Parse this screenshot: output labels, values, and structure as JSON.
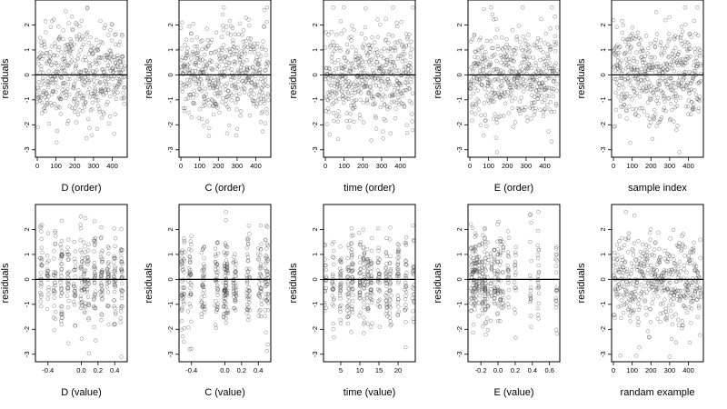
{
  "figure": {
    "colors": {
      "frame": "#000000",
      "points": "#3a3a3a",
      "background": "#ffffff"
    }
  },
  "chart_data": [
    {
      "type": "scatter",
      "xlabel": "D (order)",
      "ylabel": "residuals",
      "xlim": [
        -10,
        480
      ],
      "ylim": [
        -3.3,
        3.0
      ],
      "xticks": [
        0,
        100,
        200,
        300,
        400
      ],
      "yticks": [
        -3,
        -2,
        -1,
        0,
        1,
        2
      ],
      "reference_line_y": 0,
      "x_kind": "order",
      "n": 468,
      "seed": 11
    },
    {
      "type": "scatter",
      "xlabel": "C (order)",
      "ylabel": "residuals",
      "xlim": [
        -10,
        480
      ],
      "ylim": [
        -3.3,
        3.0
      ],
      "xticks": [
        0,
        100,
        200,
        300,
        400
      ],
      "yticks": [
        -3,
        -2,
        -1,
        0,
        1,
        2
      ],
      "reference_line_y": 0,
      "x_kind": "order",
      "n": 468,
      "seed": 23
    },
    {
      "type": "scatter",
      "xlabel": "time (order)",
      "ylabel": "residuals",
      "xlim": [
        -10,
        480
      ],
      "ylim": [
        -3.3,
        3.0
      ],
      "xticks": [
        0,
        100,
        200,
        300,
        400
      ],
      "yticks": [
        -3,
        -2,
        -1,
        0,
        1,
        2
      ],
      "reference_line_y": 0,
      "x_kind": "order",
      "n": 468,
      "seed": 37
    },
    {
      "type": "scatter",
      "xlabel": "E (order)",
      "ylabel": "residuals",
      "xlim": [
        -10,
        480
      ],
      "ylim": [
        -3.3,
        3.0
      ],
      "xticks": [
        0,
        100,
        200,
        300,
        400
      ],
      "yticks": [
        -3,
        -2,
        -1,
        0,
        1,
        2
      ],
      "reference_line_y": 0,
      "x_kind": "order",
      "n": 468,
      "seed": 41
    },
    {
      "type": "scatter",
      "xlabel": "sample index",
      "ylabel": "residuals",
      "xlim": [
        -10,
        480
      ],
      "ylim": [
        -3.3,
        3.0
      ],
      "xticks": [
        0,
        100,
        200,
        300,
        400
      ],
      "yticks": [
        -3,
        -2,
        -1,
        0,
        1,
        2
      ],
      "reference_line_y": 0,
      "x_kind": "order",
      "n": 468,
      "seed": 53
    },
    {
      "type": "scatter",
      "xlabel": "D (value)",
      "ylabel": "residuals",
      "xlim": [
        -0.55,
        0.55
      ],
      "ylim": [
        -3.3,
        3.0
      ],
      "xticks": [
        -0.4,
        0.0,
        0.2,
        0.4
      ],
      "xtick_labels": [
        "-0.4",
        "0.0",
        "0.2",
        "0.4"
      ],
      "yticks": [
        -3,
        -2,
        -1,
        0,
        1,
        2
      ],
      "reference_line_y": 0,
      "x_kind": "cols",
      "x_positions": [
        -0.48,
        -0.4,
        -0.32,
        -0.24,
        -0.16,
        -0.08,
        0.0,
        0.04,
        0.08,
        0.16,
        0.24,
        0.32,
        0.4,
        0.48
      ],
      "n": 400,
      "jitter": 0.012,
      "seed": 61
    },
    {
      "type": "scatter",
      "xlabel": "C (value)",
      "ylabel": "residuals",
      "xlim": [
        -0.55,
        0.55
      ],
      "ylim": [
        -3.3,
        3.0
      ],
      "xticks": [
        -0.4,
        0.0,
        0.2,
        0.4
      ],
      "xtick_labels": [
        "-0.4",
        "0.0",
        "0.2",
        "0.4"
      ],
      "yticks": [
        -3,
        -2,
        -1,
        0,
        1,
        2
      ],
      "reference_line_y": 0,
      "x_kind": "cols",
      "x_positions": [
        -0.5,
        -0.42,
        -0.26,
        -0.1,
        0.0,
        0.02,
        0.12,
        0.28,
        0.42,
        0.5
      ],
      "n": 400,
      "jitter": 0.02,
      "seed": 71
    },
    {
      "type": "scatter",
      "xlabel": "time (value)",
      "ylabel": "residuals",
      "xlim": [
        0.5,
        24.5
      ],
      "ylim": [
        -3.3,
        3.0
      ],
      "xticks": [
        5,
        10,
        15,
        20
      ],
      "yticks": [
        -3,
        -2,
        -1,
        0,
        1,
        2
      ],
      "reference_line_y": 0,
      "x_kind": "cols",
      "x_positions": [
        1,
        3,
        5,
        7,
        8,
        10,
        11,
        12,
        13,
        15,
        17,
        18,
        20,
        22,
        24
      ],
      "n": 420,
      "jitter": 0.25,
      "seed": 83
    },
    {
      "type": "scatter",
      "xlabel": "E (value)",
      "ylabel": "residuals",
      "xlim": [
        -0.35,
        0.72
      ],
      "ylim": [
        -3.3,
        3.0
      ],
      "xticks": [
        -0.2,
        0.0,
        0.2,
        0.4,
        0.6
      ],
      "xtick_labels": [
        "-0.2",
        "0.0",
        "0.2",
        "0.4",
        "0.6"
      ],
      "yticks": [
        -3,
        -2,
        -1,
        0,
        1,
        2
      ],
      "reference_line_y": 0,
      "x_kind": "cols",
      "x_positions": [
        -0.31,
        -0.29,
        -0.27,
        -0.25,
        -0.22,
        -0.18,
        -0.15,
        -0.12,
        -0.08,
        -0.04,
        0.0,
        0.03,
        0.06,
        0.12,
        0.2,
        0.38,
        0.47,
        0.68
      ],
      "n": 380,
      "jitter": 0.008,
      "seed": 97
    },
    {
      "type": "scatter",
      "xlabel": "randam example",
      "ylabel": "residuals",
      "xlim": [
        -10,
        480
      ],
      "ylim": [
        -3.3,
        3.0
      ],
      "xticks": [
        0,
        100,
        200,
        300,
        400
      ],
      "yticks": [
        -3,
        -2,
        -1,
        0,
        1,
        2
      ],
      "reference_line_y": 0,
      "x_kind": "order",
      "n": 468,
      "seed": 109
    }
  ]
}
